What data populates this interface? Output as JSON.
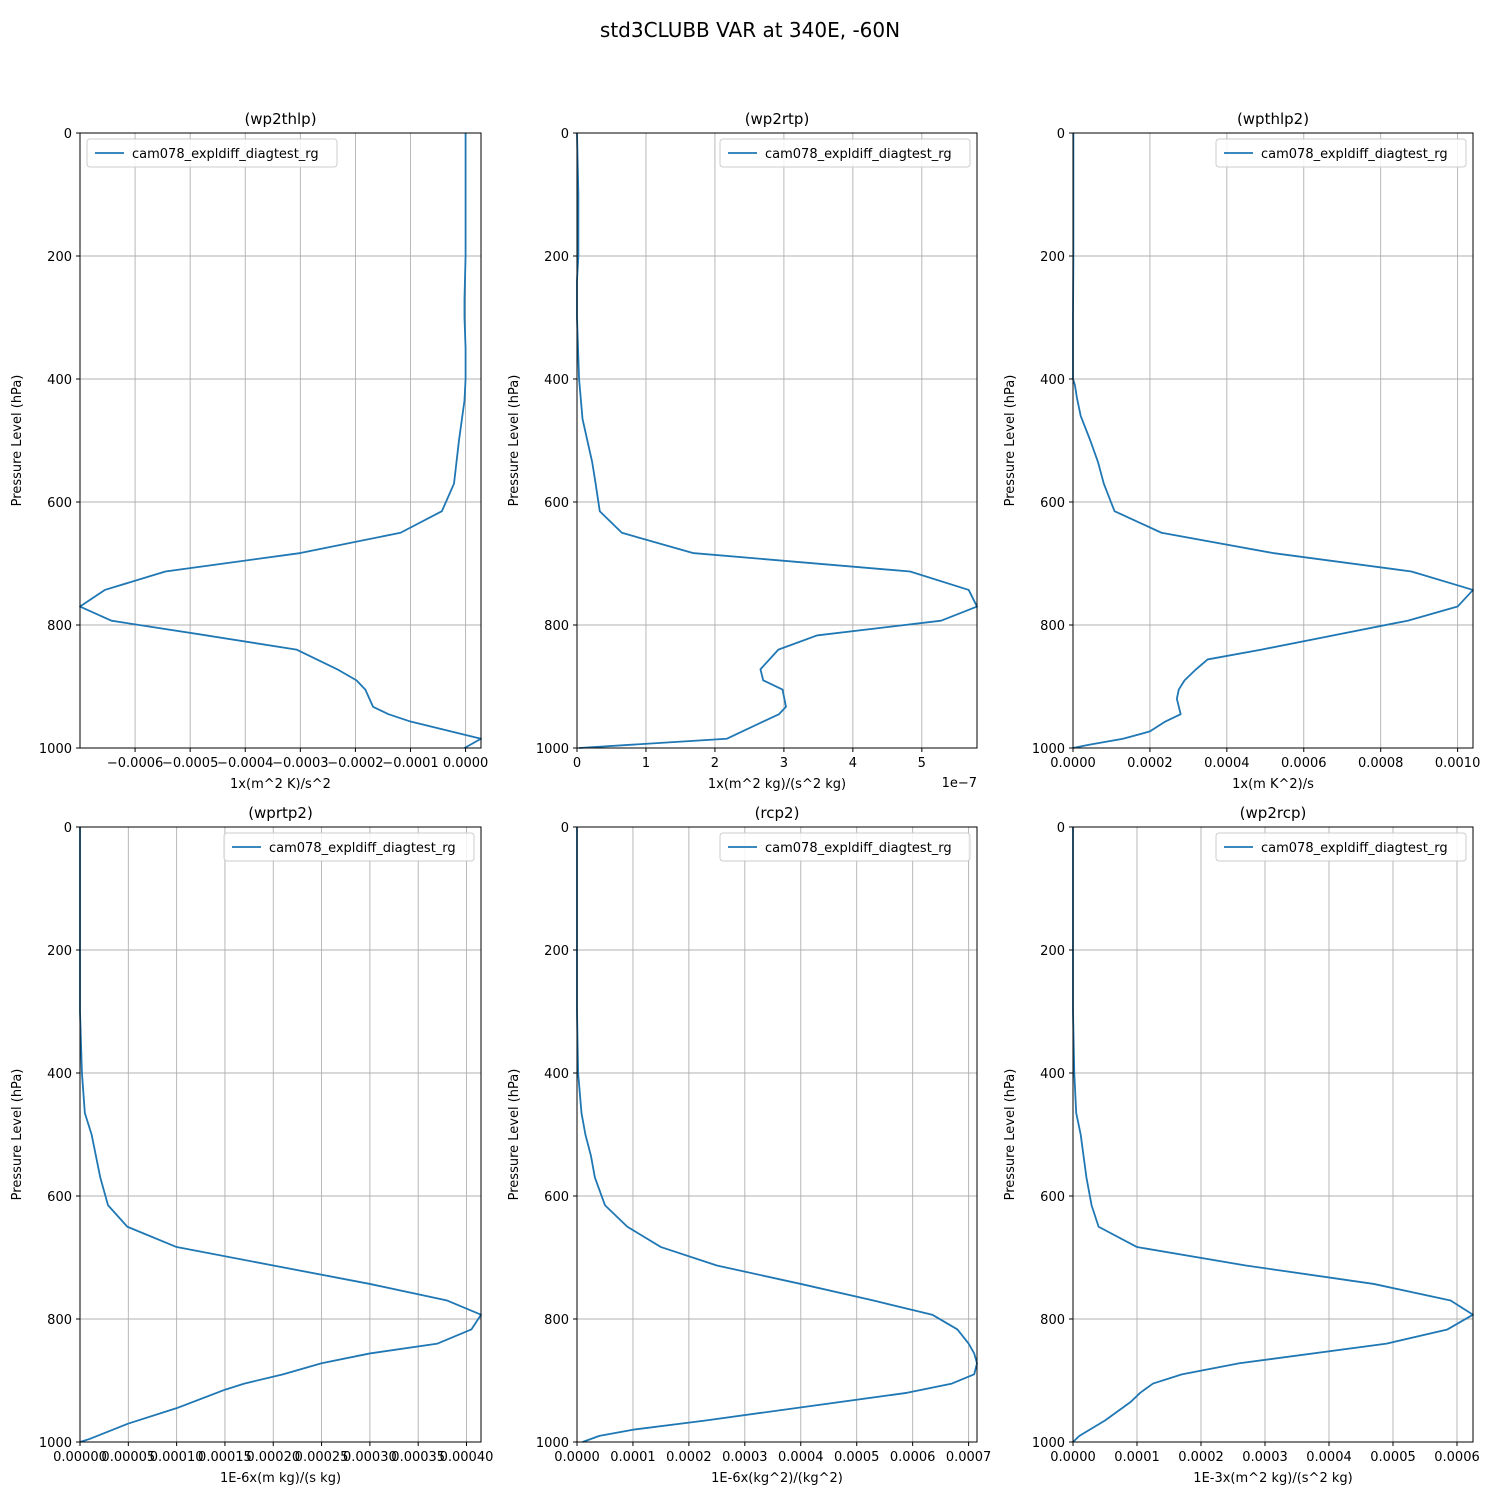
{
  "figure": {
    "suptitle": "std3CLUBB VAR at 340E, -60N",
    "legend_label": "cam078_expldiff_diagtest_rg",
    "line_color": "#1f77b4",
    "grid_color": "#b0b0b0"
  },
  "chart_data": [
    {
      "type": "line",
      "title": "(wp2thlp)",
      "xlabel": "1x(m^2 K)/s^2",
      "ylabel": "Pressure Level (hPa)",
      "offset_label": "",
      "legend_position": "upper left",
      "xlim": [
        -0.0007,
        2.8e-05
      ],
      "ylim": [
        1000,
        0
      ],
      "xticks": [
        -0.0006,
        -0.0005,
        -0.0004,
        -0.0003,
        -0.0002,
        -0.0001,
        0.0
      ],
      "xtick_labels": [
        "−0.0006",
        "−0.0005",
        "−0.0004",
        "−0.0003",
        "−0.0002",
        "−0.0001",
        "0.0000"
      ],
      "yticks": [
        0,
        200,
        400,
        600,
        800,
        1000
      ],
      "ytick_labels": [
        "0",
        "200",
        "400",
        "600",
        "800",
        "1000"
      ],
      "series": [
        {
          "name": "cam078_expldiff_diagtest_rg",
          "x": [
            0,
            0,
            0,
            -2e-06,
            -2e-06,
            0,
            0,
            -2e-06,
            -1.2e-05,
            -2.1e-05,
            -4.3e-05,
            -0.000118,
            -0.0003,
            -0.000545,
            -0.000655,
            -0.0007,
            -0.000643,
            -0.00047,
            -0.000307,
            -0.000233,
            -0.000198,
            -0.000182,
            -0.000168,
            -0.00014,
            -0.0001,
            2.8e-05,
            -2e-06
          ],
          "y": [
            0,
            100,
            200,
            270,
            300,
            350,
            400,
            435,
            500,
            570,
            615,
            650,
            683,
            713,
            743,
            770,
            793,
            817,
            840,
            872,
            890,
            905,
            933,
            945,
            957,
            985,
            1000
          ]
        }
      ]
    },
    {
      "type": "line",
      "title": "(wp2rtp)",
      "xlabel": "1x(m^2 kg)/(s^2 kg)",
      "ylabel": "Pressure Level (hPa)",
      "offset_label": "1e−7",
      "legend_position": "upper right",
      "xlim": [
        0,
        5.8
      ],
      "ylim": [
        1000,
        0
      ],
      "xticks": [
        0,
        1,
        2,
        3,
        4,
        5
      ],
      "xtick_labels": [
        "0",
        "1",
        "2",
        "3",
        "4",
        "5"
      ],
      "yticks": [
        0,
        200,
        400,
        600,
        800,
        1000
      ],
      "ytick_labels": [
        "0",
        "200",
        "400",
        "600",
        "800",
        "1000"
      ],
      "series": [
        {
          "name": "cam078_expldiff_diagtest_rg",
          "x": [
            0,
            0.02,
            0.02,
            0.0,
            0.0,
            0.03,
            0.08,
            0.15,
            0.22,
            0.27,
            0.33,
            0.65,
            1.68,
            4.83,
            5.68,
            5.8,
            5.28,
            3.48,
            2.92,
            2.66,
            2.7,
            2.98,
            3.03,
            2.93,
            2.7,
            2.17,
            0.03
          ],
          "y": [
            0,
            100,
            200,
            240,
            300,
            400,
            465,
            500,
            535,
            570,
            615,
            650,
            683,
            713,
            743,
            770,
            793,
            817,
            840,
            872,
            890,
            905,
            933,
            945,
            957,
            985,
            1000
          ]
        }
      ]
    },
    {
      "type": "line",
      "title": "(wpthlp2)",
      "xlabel": "1x(m K^2)/s",
      "ylabel": "Pressure Level (hPa)",
      "offset_label": "",
      "legend_position": "upper right",
      "xlim": [
        0,
        0.00104
      ],
      "ylim": [
        1000,
        0
      ],
      "xticks": [
        0,
        0.0002,
        0.0004,
        0.0006,
        0.0008,
        0.001
      ],
      "xtick_labels": [
        "0.0000",
        "0.0002",
        "0.0004",
        "0.0006",
        "0.0008",
        "0.0010"
      ],
      "yticks": [
        0,
        200,
        400,
        600,
        800,
        1000
      ],
      "ytick_labels": [
        "0",
        "200",
        "400",
        "600",
        "800",
        "1000"
      ],
      "series": [
        {
          "name": "cam078_expldiff_diagtest_rg",
          "x": [
            1e-06,
            1e-06,
            1e-06,
            0.0,
            0.0,
            5e-06,
            1e-05,
            2e-05,
            4.5e-05,
            6.5e-05,
            8e-05,
            0.000108,
            0.00023,
            0.00052,
            0.00088,
            0.00104,
            0.001,
            0.00087,
            0.00049,
            0.00035,
            0.00032,
            0.00029,
            0.000275,
            0.00027,
            0.00028,
            0.00024,
            0.0002,
            0.00013,
            4e-05,
            0.0
          ],
          "y": [
            0,
            100,
            200,
            300,
            400,
            410,
            430,
            460,
            500,
            535,
            570,
            615,
            650,
            683,
            713,
            743,
            770,
            793,
            840,
            856,
            872,
            890,
            905,
            920,
            945,
            957,
            973,
            985,
            995,
            1000
          ]
        }
      ]
    },
    {
      "type": "line",
      "title": "(wprtp2)",
      "xlabel": "1E-6x(m kg)/(s kg)",
      "ylabel": "Pressure Level (hPa)",
      "offset_label": "",
      "legend_position": "upper right",
      "xlim": [
        0,
        0.000415
      ],
      "ylim": [
        1000,
        0
      ],
      "xticks": [
        0,
        5e-05,
        0.0001,
        0.00015,
        0.0002,
        0.00025,
        0.0003,
        0.00035,
        0.0004
      ],
      "xtick_labels": [
        "0.00000",
        "0.00005",
        "0.00010",
        "0.00015",
        "0.00020",
        "0.00025",
        "0.00030",
        "0.00035",
        "0.00040"
      ],
      "yticks": [
        0,
        200,
        400,
        600,
        800,
        1000
      ],
      "ytick_labels": [
        "0",
        "200",
        "400",
        "600",
        "800",
        "1000"
      ],
      "series": [
        {
          "name": "cam078_expldiff_diagtest_rg",
          "x": [
            0,
            0,
            0,
            0,
            2e-06,
            5e-06,
            1.2e-05,
            2.1e-05,
            2.9e-05,
            4.9e-05,
            0.0001,
            0.0002,
            0.0003,
            0.00038,
            0.000415,
            0.000405,
            0.00037,
            0.0003,
            0.00025,
            0.00021,
            0.00017,
            0.00015,
            0.0001,
            5e-05,
            1e-05,
            0.0
          ],
          "y": [
            0,
            100,
            200,
            300,
            400,
            465,
            500,
            570,
            615,
            650,
            683,
            713,
            743,
            770,
            793,
            817,
            840,
            856,
            872,
            890,
            905,
            915,
            945,
            970,
            995,
            1000
          ]
        }
      ]
    },
    {
      "type": "line",
      "title": "(rcp2)",
      "xlabel": "1E-6x(kg^2)/(kg^2)",
      "ylabel": "Pressure Level (hPa)",
      "offset_label": "",
      "legend_position": "upper right",
      "xlim": [
        0,
        0.000715
      ],
      "ylim": [
        1000,
        0
      ],
      "xticks": [
        0,
        0.0001,
        0.0002,
        0.0003,
        0.0004,
        0.0005,
        0.0006,
        0.0007
      ],
      "xtick_labels": [
        "0.0000",
        "0.0001",
        "0.0002",
        "0.0003",
        "0.0004",
        "0.0005",
        "0.0006",
        "0.0007"
      ],
      "yticks": [
        0,
        200,
        400,
        600,
        800,
        1000
      ],
      "ytick_labels": [
        "0",
        "200",
        "400",
        "600",
        "800",
        "1000"
      ],
      "series": [
        {
          "name": "cam078_expldiff_diagtest_rg",
          "x": [
            0,
            0,
            0,
            0,
            2e-06,
            8e-06,
            1.5e-05,
            2.5e-05,
            3.2e-05,
            5e-05,
            9e-05,
            0.00015,
            0.00025,
            0.0004,
            0.00053,
            0.000635,
            0.00068,
            0.0007,
            0.00071,
            0.000715,
            0.00071,
            0.00067,
            0.00059,
            0.00023,
            0.0001,
            4e-05,
            1e-05
          ],
          "y": [
            0,
            100,
            200,
            300,
            400,
            465,
            500,
            535,
            570,
            615,
            650,
            683,
            713,
            743,
            770,
            793,
            817,
            840,
            856,
            872,
            890,
            905,
            920,
            965,
            980,
            990,
            1000
          ]
        }
      ]
    },
    {
      "type": "line",
      "title": "(wp2rcp)",
      "xlabel": "1E-3x(m^2 kg)/(s^2 kg)",
      "ylabel": "Pressure Level (hPa)",
      "offset_label": "",
      "legend_position": "upper right",
      "xlim": [
        0,
        0.000625
      ],
      "ylim": [
        1000,
        0
      ],
      "xticks": [
        0,
        0.0001,
        0.0002,
        0.0003,
        0.0004,
        0.0005,
        0.0006
      ],
      "xtick_labels": [
        "0.0000",
        "0.0001",
        "0.0002",
        "0.0003",
        "0.0004",
        "0.0005",
        "0.0006"
      ],
      "yticks": [
        0,
        200,
        400,
        600,
        800,
        1000
      ],
      "ytick_labels": [
        "0",
        "200",
        "400",
        "600",
        "800",
        "1000"
      ],
      "series": [
        {
          "name": "cam078_expldiff_diagtest_rg",
          "x": [
            0,
            0,
            0,
            0,
            2e-06,
            5e-06,
            1.2e-05,
            2.1e-05,
            2.9e-05,
            4e-05,
            0.0001,
            0.00027,
            0.00047,
            0.00059,
            0.000625,
            0.000585,
            0.00049,
            0.00026,
            0.00017,
            0.000125,
            0.000105,
            9e-05,
            5e-05,
            1e-05,
            0.0
          ],
          "y": [
            0,
            100,
            200,
            300,
            400,
            465,
            500,
            570,
            615,
            650,
            683,
            713,
            743,
            770,
            793,
            817,
            840,
            872,
            890,
            905,
            920,
            935,
            965,
            990,
            1000
          ]
        }
      ]
    }
  ]
}
